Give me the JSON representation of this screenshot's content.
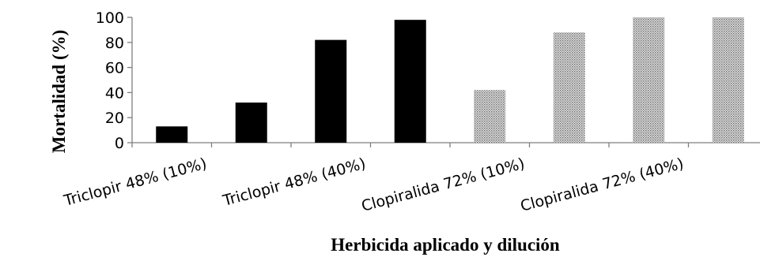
{
  "chart_data": {
    "type": "bar",
    "xlabel": "Herbicida aplicado y dilución",
    "ylabel": "Mortalidad (%)",
    "ylim": [
      0,
      100
    ],
    "yticks": [
      0,
      20,
      40,
      60,
      80,
      100
    ],
    "category_labels": [
      "Triclopir 48%  (10%)",
      "Triclopir 48% (40%)",
      "Clopiralida 72% (10%)",
      "Clopiralida 72% (40%)"
    ],
    "bars": [
      {
        "group": "Triclopir 48%",
        "value": 13,
        "fill": "#000000"
      },
      {
        "group": "Triclopir 48%",
        "value": 32,
        "fill": "#000000"
      },
      {
        "group": "Triclopir 48%",
        "value": 82,
        "fill": "#000000"
      },
      {
        "group": "Triclopir 48%",
        "value": 98,
        "fill": "#000000"
      },
      {
        "group": "Clopiralida 72%",
        "value": 42,
        "fill": "pattern-dotted-gray"
      },
      {
        "group": "Clopiralida 72%",
        "value": 88,
        "fill": "pattern-dotted-gray"
      },
      {
        "group": "Clopiralida 72%",
        "value": 100,
        "fill": "pattern-dotted-gray"
      },
      {
        "group": "Clopiralida 72%",
        "value": 100,
        "fill": "pattern-dotted-gray"
      }
    ],
    "grid": false,
    "legend": "none"
  }
}
